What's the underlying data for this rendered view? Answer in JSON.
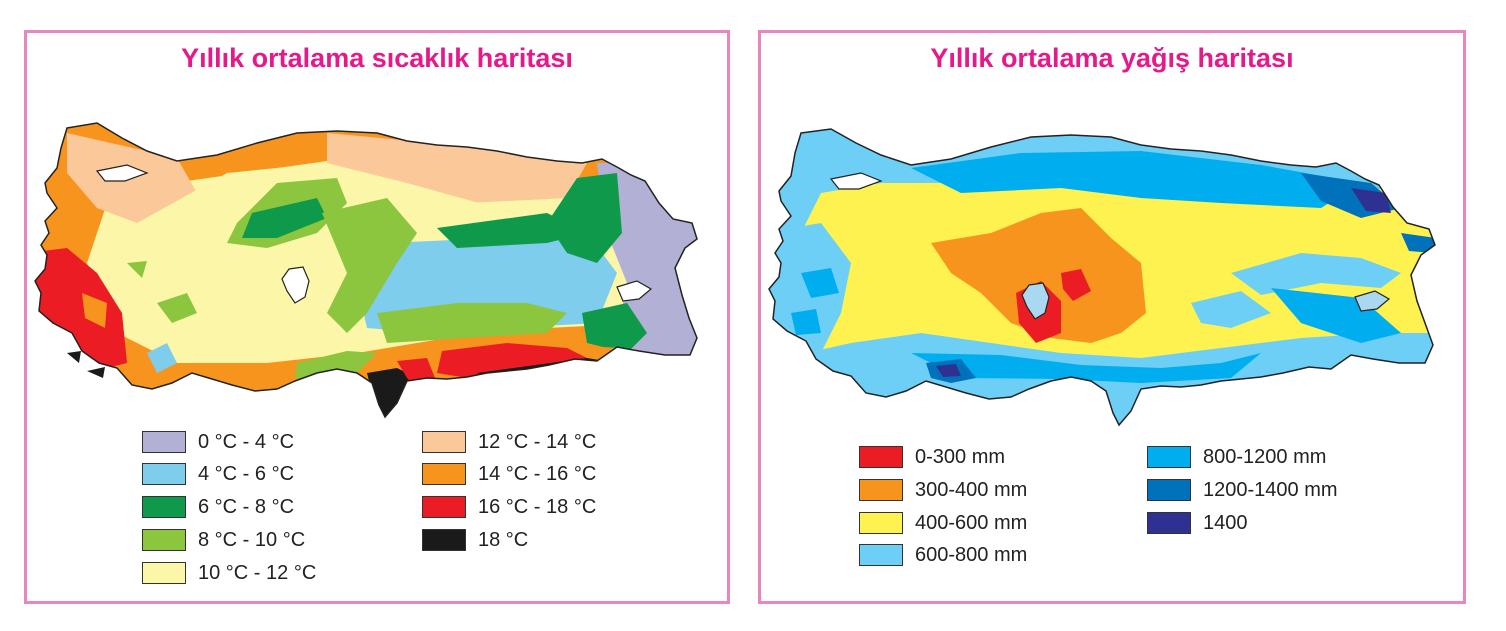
{
  "temperature_map": {
    "title": "Yıllık ortalama sıcaklık haritası",
    "legend": [
      {
        "label": "0 °C - 4 °C",
        "color": "#b3b0d6"
      },
      {
        "label": "4 °C - 6 °C",
        "color": "#7fcdec"
      },
      {
        "label": "6 °C - 8 °C",
        "color": "#0f9a4b"
      },
      {
        "label": "8 °C - 10 °C",
        "color": "#8cc63e"
      },
      {
        "label": "10 °C - 12 °C",
        "color": "#fbf6a8"
      },
      {
        "label": "12 °C - 14 °C",
        "color": "#fbc89a"
      },
      {
        "label": "14 °C - 16 °C",
        "color": "#f7941d"
      },
      {
        "label": "16 °C - 18 °C",
        "color": "#ec1c24"
      },
      {
        "label": "18 °C",
        "color": "#1a1a1a"
      }
    ]
  },
  "precipitation_map": {
    "title": "Yıllık ortalama yağış haritası",
    "legend": [
      {
        "label": "0-300 mm",
        "color": "#ec1c24"
      },
      {
        "label": "300-400 mm",
        "color": "#f7941d"
      },
      {
        "label": "400-600 mm",
        "color": "#fef250"
      },
      {
        "label": "600-800 mm",
        "color": "#6dcff6"
      },
      {
        "label": "800-1200 mm",
        "color": "#00aeef"
      },
      {
        "label": "1200-1400 mm",
        "color": "#0072bc"
      },
      {
        "label": "1400",
        "color": "#2e3192"
      }
    ]
  },
  "colors": {
    "border": "#e886bd",
    "title": "#e6198a",
    "outline": "#222222"
  }
}
